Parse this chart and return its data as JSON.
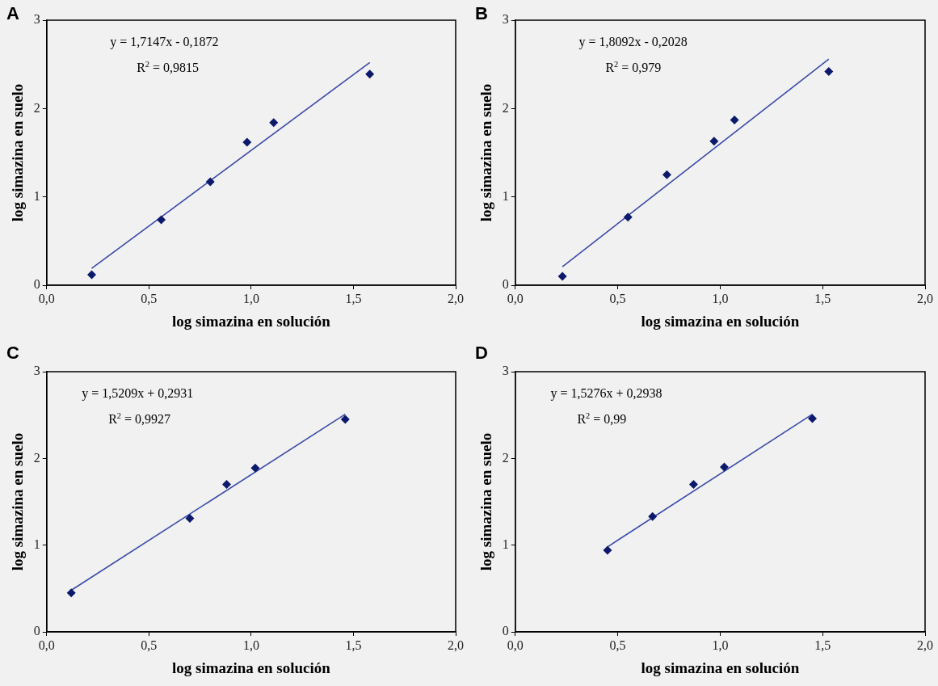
{
  "chart_data": [
    {
      "type": "scatter",
      "title": "A",
      "xlabel": "log simazina en solución",
      "ylabel": "log simazina en suelo",
      "annotations": [
        "y = 1,7147x - 0,1872",
        "R$^{2}$ = 0,9815"
      ],
      "xlim": [
        0,
        2
      ],
      "ylim": [
        0,
        3
      ],
      "xticks": [
        {
          "value": 0,
          "label": "0,0"
        },
        {
          "value": 0.5,
          "label": "0,5"
        },
        {
          "value": 1,
          "label": "1,0"
        },
        {
          "value": 1.5,
          "label": "1,5"
        },
        {
          "value": 2,
          "label": "2,0"
        }
      ],
      "yticks": [
        0,
        1,
        2,
        3
      ],
      "grid": false,
      "legend": false,
      "series": [
        {
          "type": "scatter",
          "color": "#0d1a6b",
          "marker": "diamond",
          "x": [
            0.22,
            0.56,
            0.8,
            0.98,
            1.11,
            1.58
          ],
          "values": [
            0.12,
            0.74,
            1.17,
            1.62,
            1.84,
            2.39
          ]
        },
        {
          "type": "line",
          "color": "#3a4aa8",
          "marker": "none",
          "line_style": "solid",
          "x": [
            0.22,
            1.58
          ],
          "values": [
            0.19,
            2.52
          ]
        }
      ]
    },
    {
      "type": "scatter",
      "title": "B",
      "xlabel": "log simazina en solución",
      "ylabel": "log simazina en suelo",
      "annotations": [
        "y = 1,8092x - 0,2028",
        "R$^{2}$ = 0,979"
      ],
      "xlim": [
        0,
        2
      ],
      "ylim": [
        0,
        3
      ],
      "xticks": [
        {
          "value": 0,
          "label": "0,0"
        },
        {
          "value": 0.5,
          "label": "0,5"
        },
        {
          "value": 1,
          "label": "1,0"
        },
        {
          "value": 1.5,
          "label": "1,5"
        },
        {
          "value": 2,
          "label": "2,0"
        }
      ],
      "yticks": [
        0,
        1,
        2,
        3
      ],
      "grid": false,
      "legend": false,
      "series": [
        {
          "type": "scatter",
          "color": "#0d1a6b",
          "marker": "diamond",
          "x": [
            0.23,
            0.55,
            0.74,
            0.97,
            1.07,
            1.53
          ],
          "values": [
            0.1,
            0.77,
            1.25,
            1.63,
            1.87,
            2.42
          ]
        },
        {
          "type": "line",
          "color": "#3a4aa8",
          "marker": "none",
          "line_style": "solid",
          "x": [
            0.23,
            1.53
          ],
          "values": [
            0.21,
            2.56
          ]
        }
      ]
    },
    {
      "type": "scatter",
      "title": "C",
      "xlabel": "log simazina en solución",
      "ylabel": "log simazina en suelo",
      "annotations": [
        "y = 1,5209x + 0,2931",
        "R$^{2}$ = 0,9927"
      ],
      "xlim": [
        0,
        2
      ],
      "ylim": [
        0,
        3
      ],
      "xticks": [
        {
          "value": 0,
          "label": "0,0"
        },
        {
          "value": 0.5,
          "label": "0,5"
        },
        {
          "value": 1,
          "label": "1,0"
        },
        {
          "value": 1.5,
          "label": "1,5"
        },
        {
          "value": 2,
          "label": "2,0"
        }
      ],
      "yticks": [
        0,
        1,
        2,
        3
      ],
      "grid": false,
      "legend": false,
      "series": [
        {
          "type": "scatter",
          "color": "#0d1a6b",
          "marker": "diamond",
          "x": [
            0.12,
            0.7,
            0.88,
            1.02,
            1.46
          ],
          "values": [
            0.45,
            1.31,
            1.7,
            1.89,
            2.45
          ]
        },
        {
          "type": "line",
          "color": "#3a4aa8",
          "marker": "none",
          "line_style": "solid",
          "x": [
            0.12,
            1.46
          ],
          "values": [
            0.48,
            2.51
          ]
        }
      ]
    },
    {
      "type": "scatter",
      "title": "D",
      "xlabel": "log simazina en solución",
      "ylabel": "log simazina en suelo",
      "annotations": [
        "y = 1,5276x + 0,2938",
        "R$^{2}$ = 0,99"
      ],
      "xlim": [
        0,
        2
      ],
      "ylim": [
        0,
        3
      ],
      "xticks": [
        {
          "value": 0,
          "label": "0,0"
        },
        {
          "value": 0.5,
          "label": "0,5"
        },
        {
          "value": 1,
          "label": "1,0"
        },
        {
          "value": 1.5,
          "label": "1,5"
        },
        {
          "value": 2,
          "label": "2,0"
        }
      ],
      "yticks": [
        0,
        1,
        2,
        3
      ],
      "grid": false,
      "legend": false,
      "series": [
        {
          "type": "scatter",
          "color": "#0d1a6b",
          "marker": "diamond",
          "x": [
            0.45,
            0.67,
            0.87,
            1.02,
            1.45
          ],
          "values": [
            0.94,
            1.33,
            1.7,
            1.9,
            2.46
          ]
        },
        {
          "type": "line",
          "color": "#3a4aa8",
          "marker": "none",
          "line_style": "solid",
          "x": [
            0.45,
            1.45
          ],
          "values": [
            0.98,
            2.51
          ]
        }
      ]
    }
  ]
}
